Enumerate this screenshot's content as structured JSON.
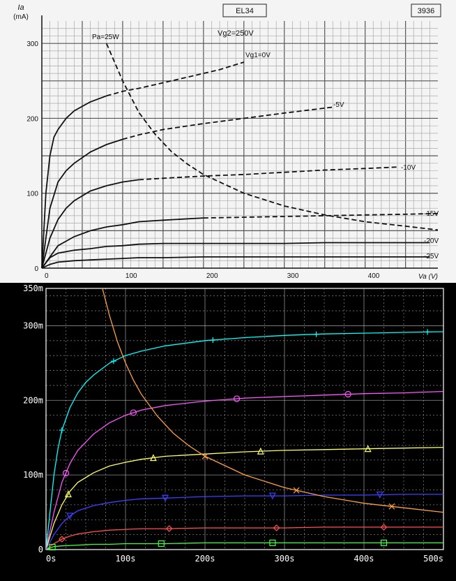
{
  "chart_data": [
    {
      "type": "line",
      "title": "EL34",
      "sheet_number": "3936",
      "vg2_label": "Vg2=250V",
      "pmax_label": "Pa=25W",
      "ylabel_symbol": "Ia",
      "ylabel_unit": "(mA)",
      "xlabel": "Va (V)",
      "x_ticks": [
        "0",
        "100",
        "200",
        "300",
        "400"
      ],
      "x_tick_values": [
        0,
        100,
        200,
        300,
        400
      ],
      "y_ticks": [
        "0",
        "100",
        "200",
        "300"
      ],
      "y_tick_values": [
        0,
        100,
        200,
        300
      ],
      "xlim": [
        0,
        490
      ],
      "ylim": [
        0,
        330
      ],
      "grid": true,
      "series": [
        {
          "name": "Vg1=0V",
          "style": "solid-then-dashed",
          "x": [
            0,
            5,
            10,
            15,
            20,
            30,
            40,
            60,
            80,
            100,
            120,
            140,
            180,
            220,
            250
          ],
          "y": [
            0,
            100,
            150,
            175,
            185,
            200,
            210,
            222,
            230,
            236,
            240,
            245,
            255,
            265,
            275
          ]
        },
        {
          "name": "-5V",
          "style": "solid-then-dashed",
          "x": [
            0,
            10,
            20,
            30,
            40,
            60,
            80,
            100,
            120,
            150,
            200,
            250,
            300,
            360
          ],
          "y": [
            0,
            80,
            115,
            130,
            140,
            155,
            165,
            172,
            178,
            185,
            193,
            200,
            207,
            215
          ]
        },
        {
          "name": "-10V",
          "style": "solid-then-dashed",
          "x": [
            0,
            10,
            20,
            30,
            40,
            60,
            80,
            100,
            120,
            150,
            200,
            250,
            300,
            350,
            400,
            440
          ],
          "y": [
            0,
            40,
            65,
            80,
            90,
            103,
            110,
            115,
            118,
            120,
            123,
            125,
            128,
            131,
            133,
            135
          ]
        },
        {
          "name": "-15V",
          "style": "solid-then-dashed",
          "x": [
            0,
            20,
            40,
            60,
            80,
            100,
            120,
            150,
            200,
            250,
            300,
            350,
            400,
            450,
            490
          ],
          "y": [
            0,
            30,
            42,
            50,
            55,
            58,
            62,
            64,
            67,
            68,
            69,
            70,
            71,
            72,
            73
          ]
        },
        {
          "name": "-20V",
          "style": "solid",
          "x": [
            0,
            10,
            20,
            40,
            60,
            80,
            100,
            120,
            150,
            200,
            250,
            300,
            350,
            400,
            480
          ],
          "y": [
            0,
            14,
            20,
            24,
            26,
            29,
            30,
            32,
            33,
            33,
            33,
            33,
            34,
            34,
            34
          ]
        },
        {
          "name": "-25V",
          "style": "solid",
          "x": [
            0,
            10,
            20,
            40,
            60,
            80,
            100,
            120,
            150,
            200,
            250,
            300,
            350,
            400,
            480
          ],
          "y": [
            0,
            5,
            8,
            10,
            11,
            12,
            13,
            14,
            14,
            15,
            15,
            15,
            15,
            15,
            15
          ]
        },
        {
          "name": "Pa=25W",
          "style": "dashed",
          "x": [
            80,
            100,
            120,
            140,
            160,
            180,
            200,
            250,
            300,
            350,
            400,
            450,
            490
          ],
          "y": [
            300,
            250,
            208,
            179,
            156,
            139,
            125,
            100,
            83,
            71,
            62,
            56,
            51
          ]
        }
      ]
    },
    {
      "type": "line",
      "x_ticks": [
        "0s",
        "100s",
        "200s",
        "300s",
        "400s",
        "500s"
      ],
      "x_tick_values": [
        0,
        100,
        200,
        300,
        400,
        500
      ],
      "y_ticks": [
        "0",
        "100m",
        "200m",
        "300m",
        "350m"
      ],
      "y_tick_values": [
        0,
        100,
        200,
        300,
        350
      ],
      "xlim": [
        0,
        500
      ],
      "ylim": [
        0,
        350
      ],
      "grid": true,
      "colors": {
        "background": "#000000",
        "axes": "#ffffff",
        "grid": "#c8c8c8"
      },
      "series": [
        {
          "color": "#00ffff",
          "marker": "plus",
          "x": [
            0,
            5,
            10,
            15,
            20,
            30,
            40,
            50,
            60,
            80,
            100,
            120,
            150,
            200,
            250,
            300,
            350,
            400,
            450,
            500
          ],
          "y": [
            0,
            50,
            100,
            135,
            160,
            190,
            210,
            224,
            234,
            250,
            260,
            266,
            273,
            280,
            284,
            287,
            289,
            290,
            291,
            292
          ],
          "marker_x": [
            20,
            85,
            210,
            340,
            480
          ]
        },
        {
          "color": "#ff55ff",
          "marker": "circle",
          "x": [
            0,
            10,
            20,
            30,
            40,
            60,
            80,
            100,
            120,
            150,
            200,
            250,
            300,
            350,
            400,
            450,
            500
          ],
          "y": [
            0,
            50,
            90,
            115,
            133,
            155,
            170,
            180,
            187,
            193,
            199,
            203,
            205,
            207,
            209,
            210,
            212
          ],
          "marker_x": [
            25,
            110,
            240,
            380
          ]
        },
        {
          "color": "#ffff66",
          "marker": "triangle",
          "x": [
            0,
            10,
            20,
            30,
            40,
            60,
            80,
            100,
            120,
            150,
            200,
            250,
            300,
            350,
            400,
            450,
            500
          ],
          "y": [
            0,
            35,
            60,
            78,
            90,
            103,
            112,
            117,
            121,
            125,
            128,
            131,
            133,
            134,
            135,
            136,
            137
          ],
          "marker_x": [
            28,
            135,
            270,
            405
          ]
        },
        {
          "color": "#4040ff",
          "marker": "triangle-down",
          "x": [
            0,
            10,
            20,
            30,
            40,
            60,
            80,
            100,
            120,
            150,
            200,
            250,
            300,
            350,
            400,
            450,
            500
          ],
          "y": [
            0,
            20,
            35,
            45,
            52,
            59,
            63,
            66,
            68,
            69,
            71,
            72,
            72,
            73,
            73,
            74,
            74
          ],
          "marker_x": [
            30,
            150,
            285,
            420
          ]
        },
        {
          "color": "#ff5050",
          "marker": "diamond",
          "x": [
            0,
            10,
            20,
            30,
            40,
            60,
            80,
            100,
            120,
            150,
            200,
            250,
            300,
            350,
            400,
            450,
            500
          ],
          "y": [
            0,
            8,
            14,
            18,
            21,
            24,
            26,
            27,
            28,
            28,
            29,
            29,
            29,
            30,
            30,
            30,
            30
          ],
          "marker_x": [
            20,
            155,
            290,
            425
          ]
        },
        {
          "color": "#40ff40",
          "marker": "square",
          "x": [
            0,
            10,
            20,
            40,
            60,
            80,
            100,
            150,
            200,
            250,
            300,
            350,
            400,
            450,
            500
          ],
          "y": [
            0,
            4,
            5,
            6,
            7,
            7,
            8,
            8,
            9,
            9,
            9,
            9,
            9,
            9,
            9
          ],
          "marker_x": [
            8,
            145,
            285,
            425
          ]
        },
        {
          "color": "#ffa040",
          "marker": "cross",
          "x": [
            71,
            80,
            90,
            100,
            110,
            120,
            140,
            160,
            180,
            200,
            250,
            300,
            350,
            400,
            450,
            500
          ],
          "y": [
            350,
            313,
            278,
            250,
            227,
            208,
            179,
            156,
            139,
            125,
            100,
            83,
            71,
            62,
            56,
            50
          ],
          "marker_x": [
            200,
            315,
            435
          ]
        }
      ]
    }
  ]
}
